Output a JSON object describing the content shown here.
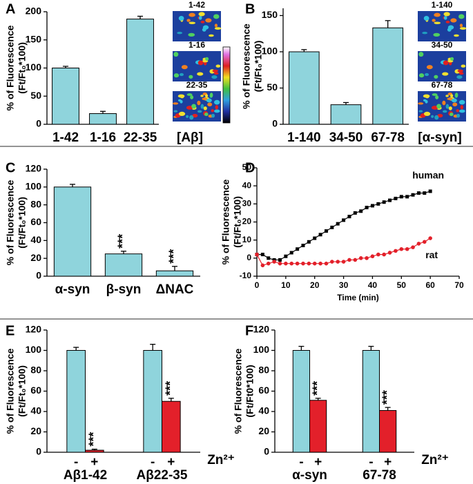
{
  "chart_data": [
    {
      "panel": "A",
      "type": "bar",
      "ylabel": [
        "% of Fluorescence",
        "(Ft/Ft₀*100)"
      ],
      "xlabel": "[Aβ]",
      "categories": [
        "1-42",
        "1-16",
        "22-35"
      ],
      "values": [
        100,
        19,
        187
      ],
      "errors": [
        3,
        4,
        5
      ],
      "color": "#8fd4dc",
      "ylim": [
        0,
        200
      ],
      "yticks": [
        0,
        50,
        100,
        150,
        200
      ],
      "image_labels": [
        "1-42",
        "1-16",
        "22-35"
      ],
      "colorbar": true
    },
    {
      "panel": "B",
      "type": "bar",
      "ylabel": [
        "% of Fluorescence",
        "(Ft/Ft₀*100)"
      ],
      "xlabel": "[α-syn]",
      "categories": [
        "1-140",
        "34-50",
        "67-78"
      ],
      "values": [
        100,
        27,
        133
      ],
      "errors": [
        3,
        3,
        10
      ],
      "color": "#8fd4dc",
      "ylim": [
        0,
        160
      ],
      "yticks": [
        0,
        50,
        100,
        150
      ],
      "image_labels": [
        "1-140",
        "34-50",
        "67-78"
      ],
      "colorbar": false
    },
    {
      "panel": "C",
      "type": "bar",
      "ylabel": [
        "% of Fluorescence",
        "(Ft/Ft₀*100)"
      ],
      "categories": [
        "α-syn",
        "β-syn",
        "ΔNAC"
      ],
      "values": [
        100,
        25,
        6
      ],
      "errors": [
        3,
        3,
        5
      ],
      "significance": [
        null,
        "***",
        "***"
      ],
      "color": "#8fd4dc",
      "ylim": [
        0,
        120
      ],
      "yticks": [
        0,
        20,
        40,
        60,
        80,
        100,
        120
      ]
    },
    {
      "panel": "D",
      "type": "line",
      "ylabel": [
        "% of Fluorescence",
        "(Ft/Ft₀*100)"
      ],
      "xlabel": "Time (min)",
      "x": [
        0,
        2,
        4,
        6,
        8,
        10,
        12,
        14,
        16,
        18,
        20,
        22,
        24,
        26,
        28,
        30,
        32,
        34,
        36,
        38,
        40,
        42,
        44,
        46,
        48,
        50,
        52,
        54,
        56,
        58,
        60
      ],
      "series": [
        {
          "name": "human",
          "color": "#000000",
          "values": [
            2,
            2,
            0,
            -1,
            -1,
            1,
            3,
            5,
            7,
            9,
            11,
            13,
            15,
            17,
            19,
            21,
            23,
            25,
            26,
            28,
            29,
            30,
            31,
            32,
            33,
            34,
            34,
            35,
            36,
            36,
            37
          ]
        },
        {
          "name": "rat",
          "color": "#e3202a",
          "values": [
            2,
            -4,
            -3,
            -2,
            -3,
            -3,
            -3,
            -3,
            -3,
            -3,
            -3,
            -3,
            -3,
            -2,
            -2,
            -2,
            -1,
            -1,
            0,
            0,
            1,
            2,
            2,
            3,
            4,
            5,
            5,
            6,
            8,
            9,
            11
          ]
        }
      ],
      "xlim": [
        0,
        70
      ],
      "xticks": [
        0,
        10,
        20,
        30,
        40,
        50,
        60,
        70
      ],
      "ylim": [
        -10,
        50
      ],
      "yticks": [
        -10,
        0,
        10,
        20,
        30,
        40,
        50
      ]
    },
    {
      "panel": "E",
      "type": "grouped_bar",
      "ylabel": [
        "% of Fluorescence",
        "(Ft/Ft₀*100)"
      ],
      "groups": [
        "Aβ1-42",
        "Aβ22-35"
      ],
      "group_label": "Zn²⁺",
      "series": [
        {
          "name": "-",
          "color": "#8fd4dc",
          "values": [
            100,
            100
          ],
          "errors": [
            3,
            6
          ]
        },
        {
          "name": "+",
          "color": "#e3202a",
          "values": [
            2,
            50
          ],
          "errors": [
            1,
            3
          ],
          "significance": [
            "***",
            "***"
          ]
        }
      ],
      "ylim": [
        0,
        120
      ],
      "yticks": [
        0,
        20,
        40,
        60,
        80,
        100,
        120
      ]
    },
    {
      "panel": "F",
      "type": "grouped_bar",
      "ylabel": [
        "% of Fluorescence",
        "(Ft/Ft0*100)"
      ],
      "groups": [
        "α-syn",
        "67-78"
      ],
      "group_label": "Zn²⁺",
      "series": [
        {
          "name": "-",
          "color": "#8fd4dc",
          "values": [
            100,
            100
          ],
          "errors": [
            4,
            4
          ]
        },
        {
          "name": "+",
          "color": "#e3202a",
          "values": [
            51,
            41
          ],
          "errors": [
            2,
            3
          ],
          "significance": [
            "***",
            "***"
          ]
        }
      ],
      "ylim": [
        0,
        120
      ],
      "yticks": [
        0,
        20,
        40,
        60,
        80,
        100,
        120
      ]
    }
  ]
}
